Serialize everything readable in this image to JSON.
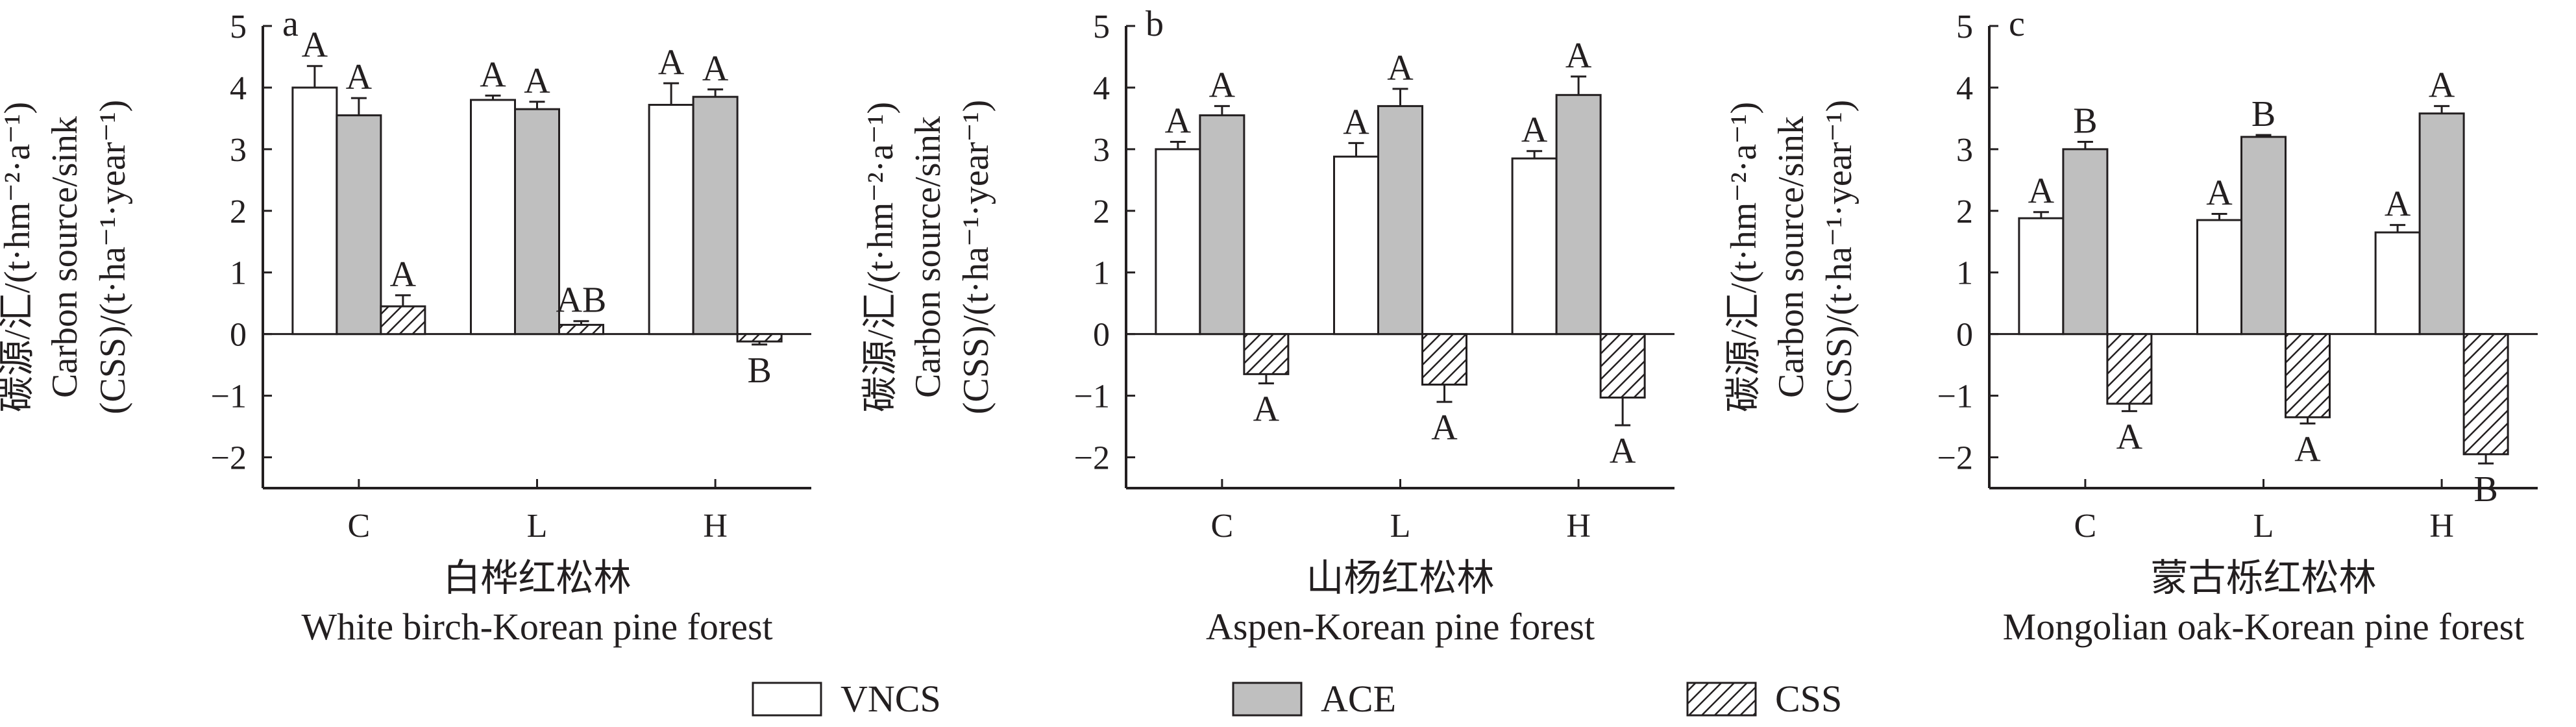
{
  "colors": {
    "VNCS": "#ffffff",
    "ACE": "#bfbfbf",
    "CSS_hatch": "#231f20",
    "axis": "#231f20"
  },
  "legend": [
    {
      "name": "VNCS",
      "fill": "white"
    },
    {
      "name": "ACE",
      "fill": "gray"
    },
    {
      "name": "CSS",
      "fill": "hatch"
    }
  ],
  "chart_data": [
    {
      "type": "bar",
      "panel_letter": "a",
      "categories": [
        "C",
        "L",
        "H"
      ],
      "xlabel_cn": "白桦红松林",
      "xlabel_en": "White birch-Korean pine forest",
      "ylabel_cn": "碳源/汇/(t·hm⁻²·a⁻¹)",
      "ylabel_en1": "Carbon source/sink",
      "ylabel_en2": "(CSS)/(t·ha⁻¹·year⁻¹)",
      "ylim": [
        -2.5,
        5
      ],
      "yticks": [
        "5",
        "4",
        "3",
        "2",
        "1",
        "0",
        "−1",
        "−2"
      ],
      "series": [
        {
          "name": "VNCS",
          "values": [
            4.0,
            3.8,
            3.72
          ],
          "errors": [
            0.35,
            0.07,
            0.35
          ],
          "labels": [
            "A",
            "A",
            "A"
          ]
        },
        {
          "name": "ACE",
          "values": [
            3.55,
            3.65,
            3.85
          ],
          "errors": [
            0.28,
            0.12,
            0.12
          ],
          "labels": [
            "A",
            "A",
            "A"
          ]
        },
        {
          "name": "CSS",
          "values": [
            0.45,
            0.15,
            -0.12
          ],
          "errors": [
            0.18,
            0.06,
            0.05
          ],
          "labels": [
            "A",
            "AB",
            "B"
          ]
        }
      ]
    },
    {
      "type": "bar",
      "panel_letter": "b",
      "categories": [
        "C",
        "L",
        "H"
      ],
      "xlabel_cn": "山杨红松林",
      "xlabel_en": "Aspen-Korean pine forest",
      "ylabel_cn": "碳源/汇/(t·hm⁻²·a⁻¹)",
      "ylabel_en1": "Carbon source/sink",
      "ylabel_en2": "(CSS)/(t·ha⁻¹·year⁻¹)",
      "ylim": [
        -2.5,
        5
      ],
      "yticks": [
        "5",
        "4",
        "3",
        "2",
        "1",
        "0",
        "−1",
        "−2"
      ],
      "series": [
        {
          "name": "VNCS",
          "values": [
            3.0,
            2.88,
            2.85
          ],
          "errors": [
            0.12,
            0.22,
            0.12
          ],
          "labels": [
            "A",
            "A",
            "A"
          ]
        },
        {
          "name": "ACE",
          "values": [
            3.55,
            3.7,
            3.88
          ],
          "errors": [
            0.15,
            0.28,
            0.3
          ],
          "labels": [
            "A",
            "A",
            "A"
          ]
        },
        {
          "name": "CSS",
          "values": [
            -0.65,
            -0.82,
            -1.03
          ],
          "errors": [
            0.15,
            0.28,
            0.45
          ],
          "labels": [
            "A",
            "A",
            "A"
          ]
        }
      ]
    },
    {
      "type": "bar",
      "panel_letter": "c",
      "categories": [
        "C",
        "L",
        "H"
      ],
      "xlabel_cn": "蒙古栎红松林",
      "xlabel_en": "Mongolian oak-Korean pine forest",
      "ylabel_cn": "碳源/汇/(t·hm⁻²·a⁻¹)",
      "ylabel_en1": "Carbon source/sink",
      "ylabel_en2": "(CSS)/(t·ha⁻¹·year⁻¹)",
      "ylim": [
        -2.5,
        5
      ],
      "yticks": [
        "5",
        "4",
        "3",
        "2",
        "1",
        "0",
        "−1",
        "−2"
      ],
      "series": [
        {
          "name": "VNCS",
          "values": [
            1.88,
            1.85,
            1.65
          ],
          "errors": [
            0.1,
            0.1,
            0.12
          ],
          "labels": [
            "A",
            "A",
            "A"
          ]
        },
        {
          "name": "ACE",
          "values": [
            3.0,
            3.2,
            3.58
          ],
          "errors": [
            0.12,
            0.03,
            0.12
          ],
          "labels": [
            "B",
            "B",
            "A"
          ]
        },
        {
          "name": "CSS",
          "values": [
            -1.13,
            -1.35,
            -1.95
          ],
          "errors": [
            0.12,
            0.1,
            0.15
          ],
          "labels": [
            "A",
            "A",
            "B"
          ]
        }
      ]
    }
  ]
}
